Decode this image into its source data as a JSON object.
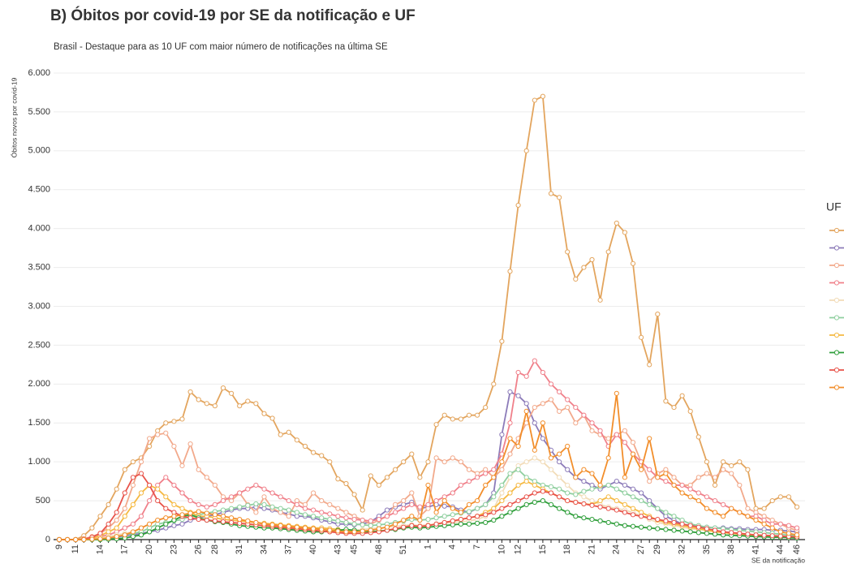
{
  "chart_data": {
    "type": "line",
    "title": "B) Óbitos por covid-19 por SE da notificação e UF",
    "subtitle": "Brasil - Destaque para as 10 UF com maior número de notificações na última SE",
    "y_label": "Óbitos novos por covid-19",
    "x_label": "SE da notificação",
    "legend_title": "UF",
    "grid": true,
    "ylim": [
      0,
      6000
    ],
    "yticks": [
      0,
      500,
      {
        "value": 1000,
        "label": "1.000"
      },
      {
        "value": 1500,
        "label": "1.500"
      },
      {
        "value": 2000,
        "label": "2.000"
      },
      {
        "value": 2500,
        "label": "2.500"
      },
      {
        "value": 3000,
        "label": "3.000"
      },
      {
        "value": 3500,
        "label": "3.500"
      },
      {
        "value": 4000,
        "label": "4.000"
      },
      {
        "value": 4500,
        "label": "4.500"
      },
      {
        "value": 5000,
        "label": "5.000"
      },
      {
        "value": 5500,
        "label": "5.500"
      },
      {
        "value": 6000,
        "label": "6.000"
      }
    ],
    "categories": [
      "9",
      null,
      "11",
      null,
      null,
      "14",
      null,
      null,
      "17",
      null,
      null,
      "20",
      null,
      null,
      "23",
      null,
      null,
      "26",
      null,
      "28",
      null,
      null,
      "31",
      null,
      null,
      "34",
      null,
      null,
      "37",
      null,
      null,
      "40",
      null,
      null,
      "43",
      null,
      "45",
      null,
      null,
      "48",
      null,
      null,
      "51",
      null,
      null,
      "1",
      null,
      null,
      "4",
      null,
      null,
      "7",
      null,
      null,
      "10",
      null,
      "12",
      null,
      null,
      "15",
      null,
      null,
      "18",
      null,
      null,
      "21",
      null,
      null,
      "24",
      null,
      null,
      "27",
      null,
      "29",
      null,
      null,
      "32",
      null,
      null,
      "35",
      null,
      null,
      "38",
      null,
      null,
      "41",
      null,
      null,
      "44",
      null,
      "46"
    ],
    "series": [
      {
        "color": "#e3a55e",
        "values": [
          0,
          0,
          0,
          50,
          150,
          300,
          450,
          650,
          900,
          1000,
          1050,
          1200,
          1400,
          1500,
          1520,
          1550,
          1900,
          1800,
          1750,
          1720,
          1950,
          1880,
          1720,
          1780,
          1750,
          1620,
          1560,
          1350,
          1380,
          1280,
          1200,
          1120,
          1080,
          1000,
          780,
          720,
          580,
          380,
          820,
          700,
          800,
          900,
          1000,
          1100,
          800,
          1000,
          1480,
          1600,
          1550,
          1550,
          1600,
          1600,
          1700,
          2000,
          2550,
          3450,
          4300,
          5000,
          5650,
          5700,
          4450,
          4400,
          3700,
          3350,
          3500,
          3600,
          3080,
          3700,
          4070,
          3950,
          3550,
          2600,
          2250,
          2900,
          1780,
          1700,
          1850,
          1650,
          1320,
          1000,
          700,
          1000,
          950,
          1000,
          900,
          400,
          400,
          500,
          550,
          550,
          420
        ]
      },
      {
        "color": "#8c7bb9",
        "values": [
          0,
          0,
          0,
          0,
          5,
          10,
          20,
          30,
          50,
          60,
          80,
          100,
          120,
          150,
          180,
          200,
          250,
          280,
          300,
          320,
          350,
          380,
          400,
          400,
          420,
          400,
          380,
          350,
          330,
          300,
          300,
          280,
          250,
          230,
          200,
          200,
          190,
          200,
          230,
          300,
          380,
          420,
          450,
          480,
          400,
          420,
          450,
          430,
          420,
          380,
          350,
          400,
          450,
          600,
          1350,
          1900,
          1850,
          1750,
          1500,
          1300,
          1150,
          1000,
          900,
          800,
          750,
          700,
          650,
          700,
          750,
          700,
          650,
          600,
          500,
          400,
          300,
          250,
          200,
          180,
          170,
          160,
          150,
          150,
          140,
          140,
          130,
          130,
          130,
          120,
          120,
          110,
          100
        ]
      },
      {
        "color": "#f2a98b",
        "values": [
          0,
          0,
          0,
          10,
          40,
          80,
          150,
          250,
          400,
          700,
          1000,
          1300,
          1350,
          1370,
          1200,
          950,
          1230,
          900,
          800,
          700,
          550,
          500,
          600,
          450,
          350,
          550,
          400,
          350,
          300,
          500,
          450,
          600,
          500,
          450,
          400,
          350,
          300,
          250,
          200,
          250,
          300,
          450,
          500,
          600,
          300,
          400,
          1050,
          1000,
          1050,
          1000,
          900,
          850,
          900,
          800,
          900,
          1100,
          1300,
          1500,
          1700,
          1750,
          1800,
          1650,
          1700,
          1500,
          1600,
          1400,
          1350,
          1300,
          1350,
          1400,
          1250,
          1000,
          750,
          850,
          900,
          800,
          700,
          700,
          800,
          850,
          800,
          900,
          850,
          700,
          400,
          350,
          300,
          250,
          200,
          150,
          120
        ]
      },
      {
        "color": "#f0808a",
        "values": [
          0,
          0,
          0,
          5,
          20,
          40,
          60,
          100,
          150,
          200,
          300,
          500,
          700,
          800,
          700,
          600,
          500,
          450,
          420,
          450,
          500,
          550,
          600,
          650,
          700,
          650,
          600,
          550,
          500,
          450,
          400,
          380,
          350,
          330,
          300,
          280,
          260,
          250,
          240,
          260,
          300,
          350,
          400,
          450,
          420,
          450,
          500,
          550,
          600,
          700,
          750,
          800,
          850,
          900,
          1100,
          1500,
          2150,
          2100,
          2300,
          2150,
          2000,
          1900,
          1800,
          1700,
          1600,
          1500,
          1400,
          1200,
          1350,
          1250,
          1100,
          1000,
          900,
          800,
          750,
          700,
          700,
          650,
          600,
          550,
          500,
          450,
          400,
          350,
          300,
          300,
          250,
          200,
          200,
          180,
          150
        ]
      },
      {
        "color": "#f2dcb8",
        "values": [
          0,
          0,
          0,
          0,
          10,
          20,
          40,
          60,
          80,
          100,
          150,
          200,
          250,
          280,
          300,
          320,
          300,
          280,
          260,
          240,
          220,
          200,
          190,
          180,
          170,
          160,
          150,
          140,
          130,
          120,
          110,
          100,
          100,
          100,
          100,
          110,
          120,
          130,
          140,
          150,
          160,
          170,
          180,
          190,
          180,
          190,
          200,
          210,
          220,
          230,
          240,
          260,
          300,
          400,
          600,
          800,
          950,
          1000,
          1050,
          1000,
          900,
          800,
          700,
          600,
          550,
          500,
          450,
          420,
          400,
          380,
          350,
          300,
          260,
          220,
          200,
          180,
          160,
          140,
          130,
          120,
          110,
          100,
          90,
          80,
          70,
          60,
          55,
          50,
          45,
          40,
          35
        ]
      },
      {
        "color": "#8fcf9f",
        "values": [
          0,
          0,
          0,
          0,
          5,
          10,
          20,
          40,
          60,
          80,
          100,
          150,
          200,
          220,
          240,
          260,
          300,
          320,
          340,
          360,
          380,
          400,
          420,
          440,
          460,
          450,
          420,
          400,
          380,
          350,
          320,
          300,
          280,
          260,
          240,
          220,
          200,
          190,
          180,
          190,
          200,
          220,
          240,
          260,
          250,
          260,
          280,
          300,
          320,
          340,
          360,
          400,
          450,
          550,
          700,
          850,
          900,
          800,
          750,
          700,
          680,
          650,
          600,
          580,
          620,
          650,
          680,
          700,
          650,
          600,
          550,
          500,
          450,
          400,
          350,
          300,
          250,
          200,
          180,
          160,
          150,
          140,
          130,
          120,
          110,
          100,
          90,
          80,
          70,
          60,
          50
        ]
      },
      {
        "color": "#f5b942",
        "values": [
          0,
          0,
          0,
          5,
          20,
          50,
          100,
          150,
          300,
          450,
          600,
          700,
          650,
          550,
          450,
          400,
          350,
          300,
          300,
          280,
          260,
          250,
          240,
          230,
          220,
          210,
          200,
          190,
          180,
          170,
          160,
          150,
          150,
          140,
          130,
          120,
          110,
          100,
          100,
          110,
          120,
          140,
          160,
          180,
          170,
          180,
          200,
          220,
          240,
          260,
          280,
          300,
          350,
          400,
          500,
          600,
          700,
          750,
          700,
          650,
          600,
          550,
          500,
          480,
          460,
          450,
          500,
          550,
          500,
          450,
          400,
          350,
          300,
          250,
          220,
          200,
          180,
          160,
          140,
          120,
          100,
          90,
          80,
          70,
          60,
          55,
          50,
          45,
          40,
          35,
          30
        ]
      },
      {
        "color": "#2e9e3a",
        "values": [
          0,
          0,
          0,
          0,
          0,
          0,
          5,
          10,
          20,
          40,
          60,
          100,
          150,
          200,
          250,
          300,
          320,
          280,
          250,
          230,
          220,
          200,
          180,
          170,
          160,
          150,
          150,
          140,
          130,
          120,
          110,
          100,
          100,
          110,
          120,
          130,
          120,
          110,
          100,
          110,
          120,
          130,
          150,
          160,
          150,
          160,
          170,
          180,
          190,
          200,
          200,
          210,
          220,
          250,
          300,
          350,
          400,
          450,
          480,
          500,
          450,
          400,
          350,
          300,
          280,
          260,
          240,
          220,
          200,
          180,
          170,
          160,
          150,
          140,
          130,
          120,
          110,
          100,
          90,
          80,
          70,
          60,
          55,
          50,
          45,
          40,
          35,
          30,
          30,
          25,
          20
        ]
      },
      {
        "color": "#e8534a",
        "values": [
          0,
          0,
          0,
          5,
          30,
          80,
          200,
          350,
          600,
          800,
          850,
          700,
          500,
          400,
          350,
          300,
          280,
          260,
          250,
          240,
          230,
          220,
          210,
          200,
          190,
          180,
          170,
          160,
          150,
          140,
          130,
          120,
          110,
          100,
          90,
          80,
          80,
          80,
          90,
          100,
          120,
          140,
          160,
          180,
          170,
          180,
          200,
          220,
          240,
          260,
          280,
          300,
          320,
          350,
          400,
          450,
          500,
          550,
          600,
          620,
          600,
          550,
          500,
          480,
          460,
          440,
          420,
          400,
          380,
          350,
          320,
          300,
          280,
          260,
          240,
          220,
          200,
          180,
          160,
          140,
          120,
          100,
          90,
          80,
          70,
          60,
          55,
          50,
          45,
          40,
          35
        ]
      },
      {
        "color": "#f28e2b",
        "values": [
          0,
          0,
          0,
          0,
          5,
          10,
          20,
          40,
          60,
          100,
          150,
          200,
          250,
          280,
          300,
          320,
          340,
          360,
          340,
          320,
          300,
          280,
          260,
          240,
          220,
          200,
          190,
          180,
          170,
          160,
          150,
          140,
          130,
          120,
          110,
          100,
          100,
          110,
          120,
          140,
          160,
          200,
          250,
          300,
          250,
          700,
          350,
          500,
          400,
          350,
          450,
          500,
          700,
          800,
          1000,
          1300,
          1200,
          1650,
          1150,
          1500,
          1050,
          1100,
          1200,
          800,
          900,
          850,
          700,
          1050,
          1880,
          800,
          1100,
          900,
          1300,
          800,
          850,
          700,
          600,
          550,
          500,
          400,
          350,
          300,
          400,
          350,
          300,
          250,
          200,
          150,
          100,
          80,
          60
        ]
      }
    ]
  }
}
